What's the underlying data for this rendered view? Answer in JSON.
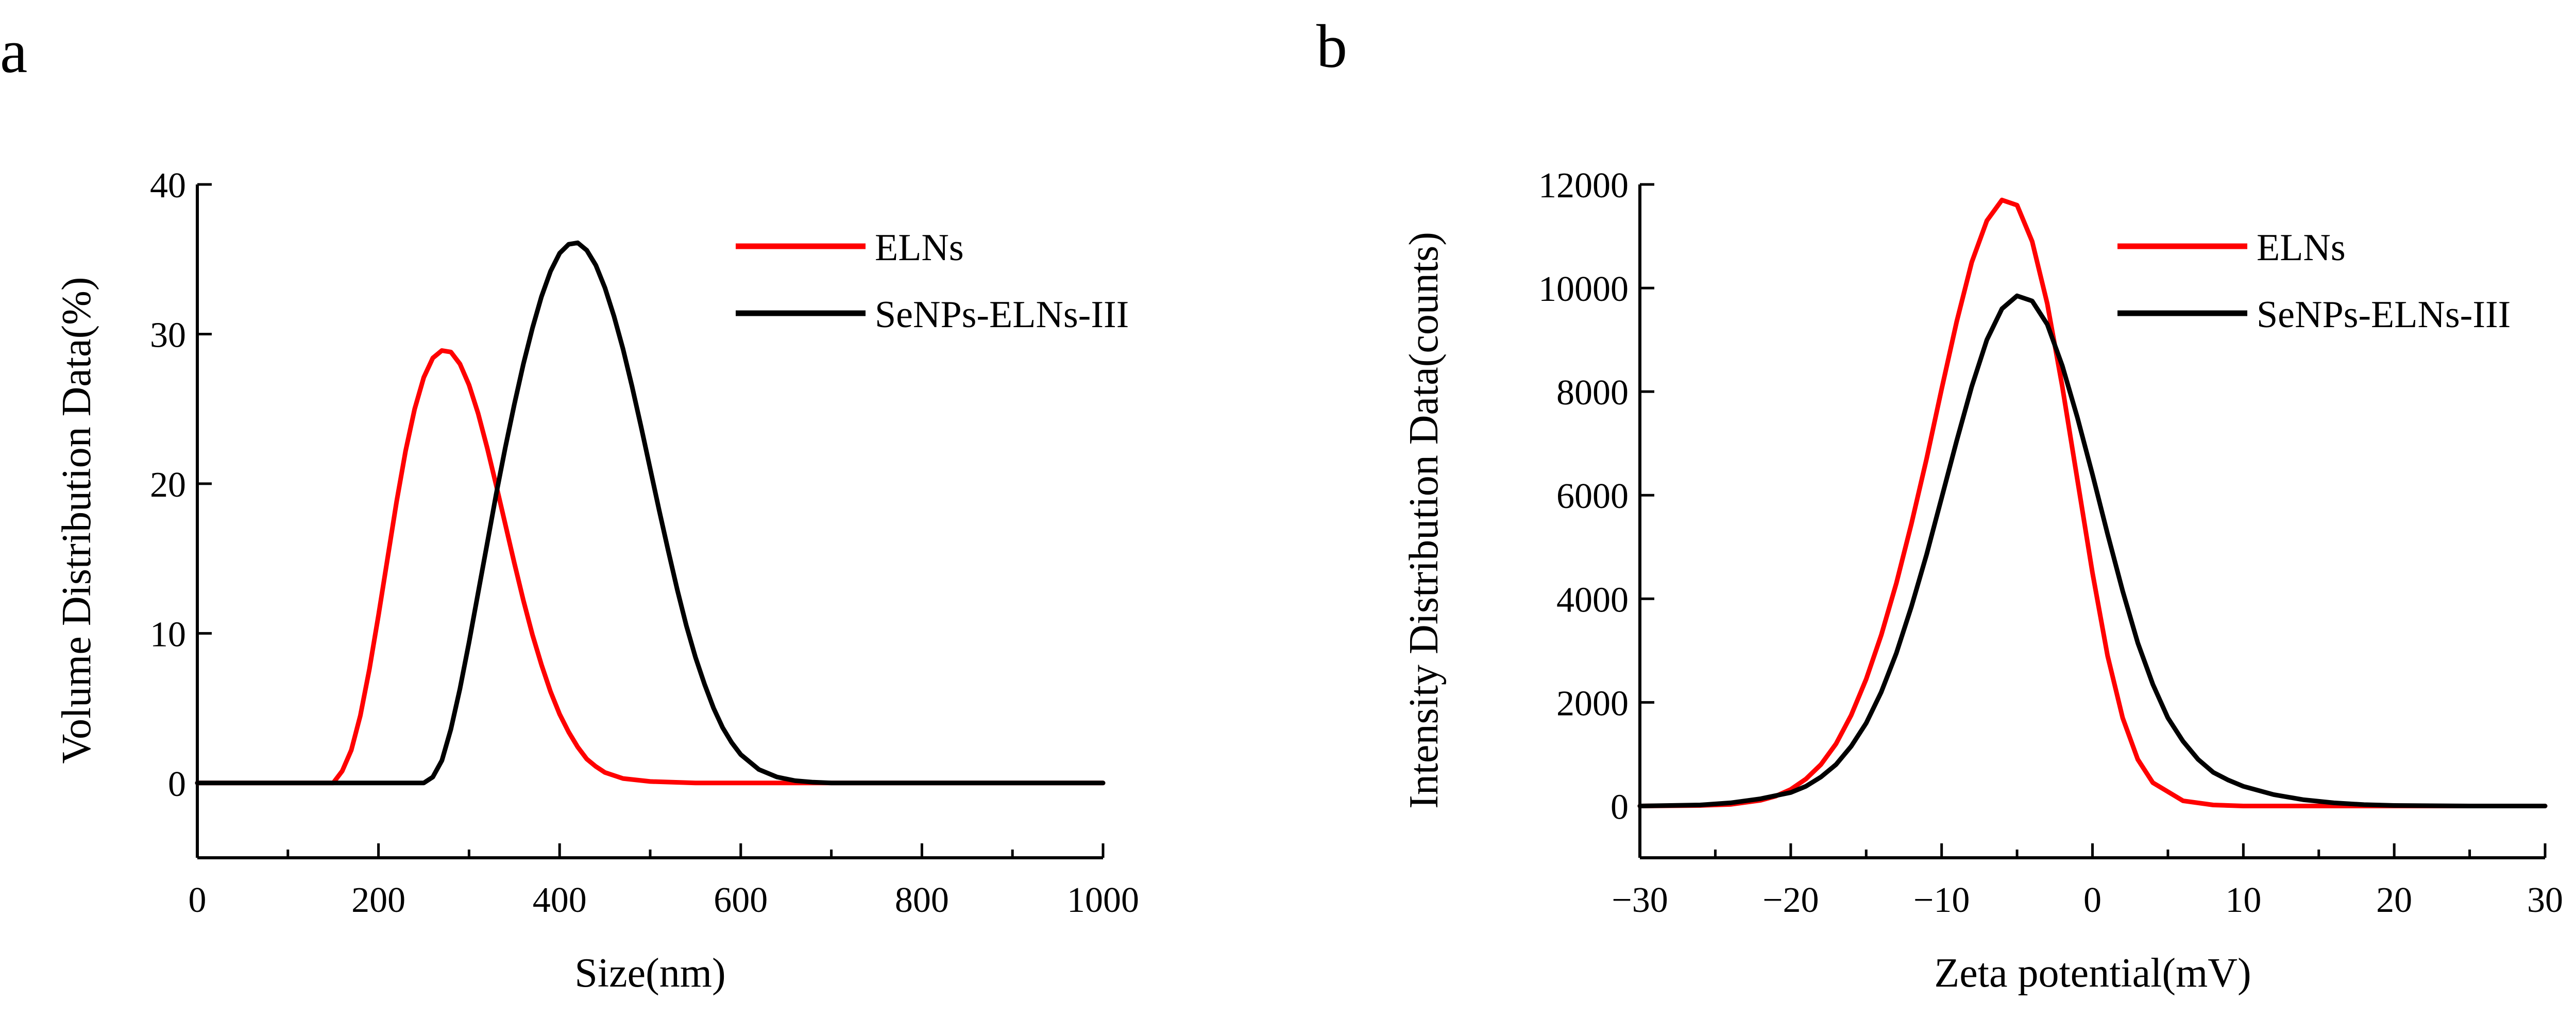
{
  "chart_data": [
    {
      "panel_label": "a",
      "type": "line",
      "title": "",
      "xlabel": "Size(nm)",
      "ylabel": "Volume Distribution Data(%)",
      "xlim": [
        0,
        1000
      ],
      "ylim": [
        -5,
        40
      ],
      "xticks": [
        0,
        200,
        400,
        600,
        800,
        1000
      ],
      "xtick_labels": [
        "0",
        "200",
        "400",
        "600",
        "800",
        "1000"
      ],
      "yticks": [
        0,
        10,
        20,
        30,
        40
      ],
      "ytick_labels": [
        "0",
        "10",
        "20",
        "30",
        "40"
      ],
      "x_minor_step": 100,
      "grid": false,
      "legend_position": "top-right",
      "series": [
        {
          "name": "ELNs",
          "color": "#ff0000",
          "x": [
            0,
            100,
            150,
            160,
            170,
            180,
            190,
            200,
            210,
            220,
            230,
            240,
            250,
            260,
            270,
            280,
            290,
            300,
            310,
            320,
            330,
            340,
            350,
            360,
            370,
            380,
            390,
            400,
            410,
            420,
            430,
            440,
            450,
            470,
            500,
            550,
            600,
            700,
            800,
            900,
            1000
          ],
          "y": [
            0,
            0,
            0,
            0.8,
            2.2,
            4.5,
            7.6,
            11.2,
            15.0,
            18.8,
            22.2,
            25.0,
            27.1,
            28.4,
            28.9,
            28.8,
            28.0,
            26.6,
            24.7,
            22.4,
            19.9,
            17.3,
            14.7,
            12.2,
            9.9,
            7.9,
            6.1,
            4.6,
            3.4,
            2.4,
            1.6,
            1.1,
            0.7,
            0.3,
            0.1,
            0,
            0,
            0,
            0,
            0,
            0
          ]
        },
        {
          "name": "SeNPs-ELNs-III",
          "color": "#000000",
          "x": [
            0,
            100,
            200,
            250,
            260,
            270,
            280,
            290,
            300,
            310,
            320,
            330,
            340,
            350,
            360,
            370,
            380,
            390,
            400,
            410,
            420,
            430,
            440,
            450,
            460,
            470,
            480,
            490,
            500,
            510,
            520,
            530,
            540,
            550,
            560,
            570,
            580,
            590,
            600,
            620,
            640,
            660,
            680,
            700,
            800,
            900,
            1000
          ],
          "y": [
            0,
            0,
            0,
            0,
            0.4,
            1.5,
            3.6,
            6.3,
            9.4,
            12.7,
            16.0,
            19.3,
            22.4,
            25.3,
            28.0,
            30.4,
            32.5,
            34.2,
            35.4,
            36.0,
            36.1,
            35.6,
            34.6,
            33.1,
            31.2,
            29.0,
            26.5,
            23.8,
            21.0,
            18.2,
            15.5,
            12.9,
            10.5,
            8.4,
            6.6,
            5.0,
            3.7,
            2.7,
            1.9,
            0.9,
            0.4,
            0.15,
            0.05,
            0,
            0,
            0,
            0
          ]
        }
      ]
    },
    {
      "panel_label": "b",
      "type": "line",
      "title": "",
      "xlabel": "Zeta potential(mV)",
      "ylabel": "Intensity Distribution Data(counts)",
      "xlim": [
        -30,
        30
      ],
      "ylim": [
        -1000,
        12000
      ],
      "xticks": [
        -30,
        -20,
        -10,
        0,
        10,
        20,
        30
      ],
      "xtick_labels": [
        "−30",
        "−20",
        "−10",
        "0",
        "10",
        "20",
        "30"
      ],
      "yticks": [
        0,
        2000,
        4000,
        6000,
        8000,
        10000,
        12000
      ],
      "ytick_labels": [
        "0",
        "2000",
        "4000",
        "6000",
        "8000",
        "10000",
        "12000"
      ],
      "x_minor_step": 5,
      "grid": false,
      "legend_position": "top-right",
      "series": [
        {
          "name": "ELNs",
          "color": "#ff0000",
          "x": [
            -30,
            -26,
            -24,
            -22,
            -21,
            -20,
            -19,
            -18,
            -17,
            -16,
            -15,
            -14,
            -13,
            -12,
            -11,
            -10,
            -9,
            -8,
            -7,
            -6,
            -5,
            -4,
            -3,
            -2,
            -1,
            0,
            1,
            2,
            3,
            4,
            6,
            8,
            10,
            15,
            20,
            30
          ],
          "y": [
            0,
            10,
            30,
            110,
            190,
            320,
            520,
            800,
            1200,
            1750,
            2450,
            3300,
            4300,
            5450,
            6700,
            8050,
            9350,
            10500,
            11300,
            11700,
            11600,
            10900,
            9700,
            8100,
            6300,
            4500,
            2900,
            1700,
            900,
            450,
            100,
            20,
            0,
            0,
            0,
            0
          ]
        },
        {
          "name": "SeNPs-ELNs-III",
          "color": "#000000",
          "x": [
            -30,
            -26,
            -24,
            -22,
            -20,
            -19,
            -18,
            -17,
            -16,
            -15,
            -14,
            -13,
            -12,
            -11,
            -10,
            -9,
            -8,
            -7,
            -6,
            -5,
            -4,
            -3,
            -2,
            -1,
            0,
            1,
            2,
            3,
            4,
            5,
            6,
            7,
            8,
            9,
            10,
            12,
            14,
            16,
            18,
            20,
            25,
            30
          ],
          "y": [
            0,
            20,
            60,
            140,
            260,
            380,
            560,
            800,
            1150,
            1600,
            2200,
            2950,
            3850,
            4850,
            5950,
            7050,
            8100,
            9000,
            9600,
            9850,
            9750,
            9300,
            8500,
            7500,
            6400,
            5250,
            4150,
            3150,
            2350,
            1700,
            1250,
            900,
            650,
            500,
            380,
            220,
            120,
            60,
            25,
            10,
            0,
            0
          ]
        }
      ]
    }
  ]
}
